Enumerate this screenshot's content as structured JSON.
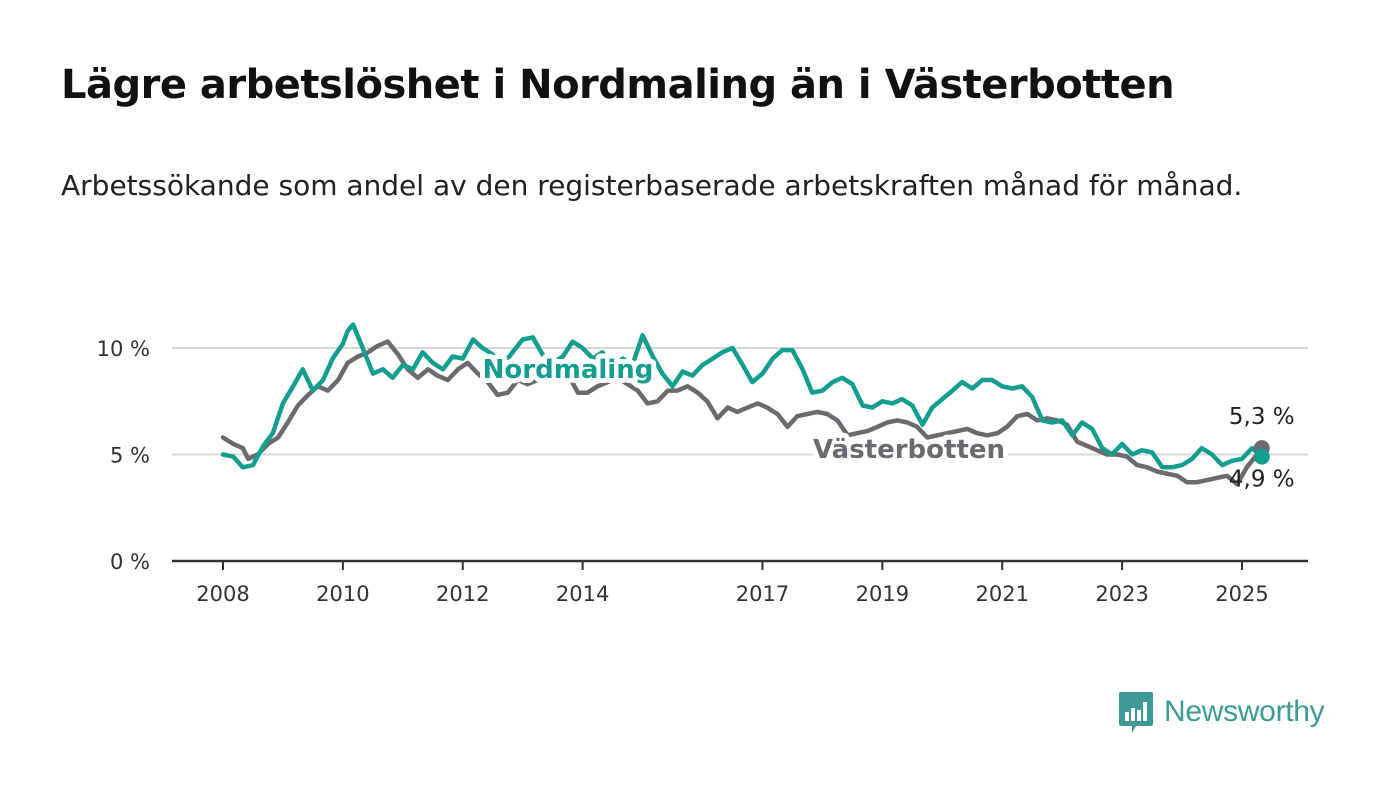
{
  "title": "Lägre arbetslöshet i Nordmaling än i Västerbotten",
  "subtitle": "Arbetssökande som andel av den registerbaserade arbetskraften månad för månad.",
  "brand": {
    "name": "Newsworthy",
    "color": "#3d9a97",
    "icon": "bar-chart-speech-bubble-icon"
  },
  "chart_data": {
    "type": "line",
    "title": "",
    "xlabel": "",
    "ylabel": "",
    "xlim": [
      2008,
      2025.33
    ],
    "ylim": [
      0,
      11
    ],
    "grid": true,
    "x_ticks": [
      2008,
      2010,
      2012,
      2014,
      2017,
      2019,
      2021,
      2023,
      2025
    ],
    "x_tick_labels": [
      "2008",
      "2010",
      "2012",
      "2014",
      "2017",
      "2019",
      "2021",
      "2023",
      "2025"
    ],
    "y_ticks": [
      0,
      5,
      10
    ],
    "y_tick_labels": [
      "0 %",
      "5 %",
      "10 %"
    ],
    "series": [
      {
        "name": "Västerbotten",
        "color": "#6b6a6e",
        "end_label": "5,3 %",
        "points": [
          [
            2008.0,
            5.8
          ],
          [
            2008.17,
            5.5
          ],
          [
            2008.33,
            5.3
          ],
          [
            2008.42,
            4.8
          ],
          [
            2008.58,
            5.0
          ],
          [
            2008.75,
            5.5
          ],
          [
            2008.92,
            5.8
          ],
          [
            2009.08,
            6.5
          ],
          [
            2009.25,
            7.3
          ],
          [
            2009.42,
            7.8
          ],
          [
            2009.58,
            8.2
          ],
          [
            2009.75,
            8.0
          ],
          [
            2009.92,
            8.5
          ],
          [
            2010.08,
            9.3
          ],
          [
            2010.25,
            9.6
          ],
          [
            2010.42,
            9.8
          ],
          [
            2010.58,
            10.1
          ],
          [
            2010.75,
            10.3
          ],
          [
            2010.92,
            9.7
          ],
          [
            2011.08,
            9.0
          ],
          [
            2011.25,
            8.6
          ],
          [
            2011.42,
            9.0
          ],
          [
            2011.58,
            8.7
          ],
          [
            2011.75,
            8.5
          ],
          [
            2011.92,
            9.0
          ],
          [
            2012.08,
            9.3
          ],
          [
            2012.25,
            8.8
          ],
          [
            2012.42,
            8.4
          ],
          [
            2012.58,
            7.8
          ],
          [
            2012.75,
            7.9
          ],
          [
            2012.92,
            8.5
          ],
          [
            2013.08,
            8.3
          ],
          [
            2013.25,
            8.5
          ],
          [
            2013.42,
            8.7
          ],
          [
            2013.58,
            8.9
          ],
          [
            2013.75,
            8.8
          ],
          [
            2013.92,
            7.9
          ],
          [
            2014.08,
            7.9
          ],
          [
            2014.25,
            8.2
          ],
          [
            2014.42,
            8.4
          ],
          [
            2014.58,
            8.6
          ],
          [
            2014.75,
            8.3
          ],
          [
            2014.92,
            8.0
          ],
          [
            2015.08,
            7.4
          ],
          [
            2015.25,
            7.5
          ],
          [
            2015.42,
            8.0
          ],
          [
            2015.58,
            8.0
          ],
          [
            2015.75,
            8.2
          ],
          [
            2015.92,
            7.9
          ],
          [
            2016.08,
            7.5
          ],
          [
            2016.25,
            6.7
          ],
          [
            2016.42,
            7.2
          ],
          [
            2016.58,
            7.0
          ],
          [
            2016.75,
            7.2
          ],
          [
            2016.92,
            7.4
          ],
          [
            2017.08,
            7.2
          ],
          [
            2017.25,
            6.9
          ],
          [
            2017.42,
            6.3
          ],
          [
            2017.58,
            6.8
          ],
          [
            2017.75,
            6.9
          ],
          [
            2017.92,
            7.0
          ],
          [
            2018.08,
            6.9
          ],
          [
            2018.25,
            6.6
          ],
          [
            2018.42,
            5.9
          ],
          [
            2018.58,
            6.0
          ],
          [
            2018.75,
            6.1
          ],
          [
            2018.92,
            6.3
          ],
          [
            2019.08,
            6.5
          ],
          [
            2019.25,
            6.6
          ],
          [
            2019.42,
            6.5
          ],
          [
            2019.58,
            6.3
          ],
          [
            2019.75,
            5.8
          ],
          [
            2019.92,
            5.9
          ],
          [
            2020.08,
            6.0
          ],
          [
            2020.25,
            6.1
          ],
          [
            2020.42,
            6.2
          ],
          [
            2020.58,
            6.0
          ],
          [
            2020.75,
            5.9
          ],
          [
            2020.92,
            6.0
          ],
          [
            2021.08,
            6.3
          ],
          [
            2021.25,
            6.8
          ],
          [
            2021.42,
            6.9
          ],
          [
            2021.58,
            6.6
          ],
          [
            2021.75,
            6.7
          ],
          [
            2021.92,
            6.6
          ],
          [
            2022.08,
            6.4
          ],
          [
            2022.25,
            5.6
          ],
          [
            2022.42,
            5.4
          ],
          [
            2022.58,
            5.2
          ],
          [
            2022.75,
            5.0
          ],
          [
            2022.92,
            5.0
          ],
          [
            2023.08,
            4.9
          ],
          [
            2023.25,
            4.5
          ],
          [
            2023.42,
            4.4
          ],
          [
            2023.58,
            4.2
          ],
          [
            2023.75,
            4.1
          ],
          [
            2023.92,
            4.0
          ],
          [
            2024.08,
            3.7
          ],
          [
            2024.25,
            3.7
          ],
          [
            2024.42,
            3.8
          ],
          [
            2024.58,
            3.9
          ],
          [
            2024.75,
            4.0
          ],
          [
            2024.92,
            3.6
          ],
          [
            2025.08,
            4.4
          ],
          [
            2025.25,
            5.0
          ],
          [
            2025.33,
            5.3
          ]
        ]
      },
      {
        "name": "Nordmaling",
        "color": "#139e8f",
        "end_label": "4,9 %",
        "points": [
          [
            2008.0,
            5.0
          ],
          [
            2008.17,
            4.9
          ],
          [
            2008.33,
            4.4
          ],
          [
            2008.5,
            4.5
          ],
          [
            2008.67,
            5.4
          ],
          [
            2008.83,
            6.0
          ],
          [
            2009.0,
            7.4
          ],
          [
            2009.17,
            8.2
          ],
          [
            2009.33,
            9.0
          ],
          [
            2009.5,
            8.0
          ],
          [
            2009.67,
            8.5
          ],
          [
            2009.83,
            9.5
          ],
          [
            2010.0,
            10.2
          ],
          [
            2010.08,
            10.8
          ],
          [
            2010.17,
            11.1
          ],
          [
            2010.33,
            10.0
          ],
          [
            2010.5,
            8.8
          ],
          [
            2010.67,
            9.0
          ],
          [
            2010.83,
            8.6
          ],
          [
            2011.0,
            9.2
          ],
          [
            2011.17,
            9.0
          ],
          [
            2011.33,
            9.8
          ],
          [
            2011.5,
            9.3
          ],
          [
            2011.67,
            9.0
          ],
          [
            2011.83,
            9.6
          ],
          [
            2012.0,
            9.5
          ],
          [
            2012.17,
            10.4
          ],
          [
            2012.33,
            10.0
          ],
          [
            2012.5,
            9.7
          ],
          [
            2012.67,
            9.2
          ],
          [
            2012.83,
            9.8
          ],
          [
            2013.0,
            10.4
          ],
          [
            2013.17,
            10.5
          ],
          [
            2013.33,
            9.7
          ],
          [
            2013.5,
            9.3
          ],
          [
            2013.67,
            9.6
          ],
          [
            2013.83,
            10.3
          ],
          [
            2014.0,
            10.0
          ],
          [
            2014.17,
            9.5
          ],
          [
            2014.33,
            9.8
          ],
          [
            2014.5,
            9.0
          ],
          [
            2014.67,
            9.5
          ],
          [
            2014.83,
            9.2
          ],
          [
            2015.0,
            10.6
          ],
          [
            2015.17,
            9.6
          ],
          [
            2015.33,
            8.8
          ],
          [
            2015.5,
            8.2
          ],
          [
            2015.67,
            8.9
          ],
          [
            2015.83,
            8.7
          ],
          [
            2016.0,
            9.2
          ],
          [
            2016.17,
            9.5
          ],
          [
            2016.33,
            9.8
          ],
          [
            2016.5,
            10.0
          ],
          [
            2016.67,
            9.2
          ],
          [
            2016.83,
            8.4
          ],
          [
            2017.0,
            8.8
          ],
          [
            2017.17,
            9.5
          ],
          [
            2017.33,
            9.9
          ],
          [
            2017.5,
            9.9
          ],
          [
            2017.67,
            9.0
          ],
          [
            2017.83,
            7.9
          ],
          [
            2018.0,
            8.0
          ],
          [
            2018.17,
            8.4
          ],
          [
            2018.33,
            8.6
          ],
          [
            2018.5,
            8.3
          ],
          [
            2018.67,
            7.3
          ],
          [
            2018.83,
            7.2
          ],
          [
            2019.0,
            7.5
          ],
          [
            2019.17,
            7.4
          ],
          [
            2019.33,
            7.6
          ],
          [
            2019.5,
            7.3
          ],
          [
            2019.67,
            6.4
          ],
          [
            2019.83,
            7.2
          ],
          [
            2020.0,
            7.6
          ],
          [
            2020.17,
            8.0
          ],
          [
            2020.33,
            8.4
          ],
          [
            2020.5,
            8.1
          ],
          [
            2020.67,
            8.5
          ],
          [
            2020.83,
            8.5
          ],
          [
            2021.0,
            8.2
          ],
          [
            2021.17,
            8.1
          ],
          [
            2021.33,
            8.2
          ],
          [
            2021.5,
            7.7
          ],
          [
            2021.67,
            6.6
          ],
          [
            2021.83,
            6.5
          ],
          [
            2022.0,
            6.6
          ],
          [
            2022.17,
            5.9
          ],
          [
            2022.33,
            6.5
          ],
          [
            2022.5,
            6.2
          ],
          [
            2022.67,
            5.3
          ],
          [
            2022.83,
            5.0
          ],
          [
            2023.0,
            5.5
          ],
          [
            2023.17,
            5.0
          ],
          [
            2023.33,
            5.2
          ],
          [
            2023.5,
            5.1
          ],
          [
            2023.67,
            4.4
          ],
          [
            2023.83,
            4.4
          ],
          [
            2024.0,
            4.5
          ],
          [
            2024.17,
            4.8
          ],
          [
            2024.33,
            5.3
          ],
          [
            2024.5,
            5.0
          ],
          [
            2024.67,
            4.5
          ],
          [
            2024.83,
            4.7
          ],
          [
            2025.0,
            4.8
          ],
          [
            2025.17,
            5.3
          ],
          [
            2025.33,
            4.9
          ]
        ]
      }
    ]
  }
}
